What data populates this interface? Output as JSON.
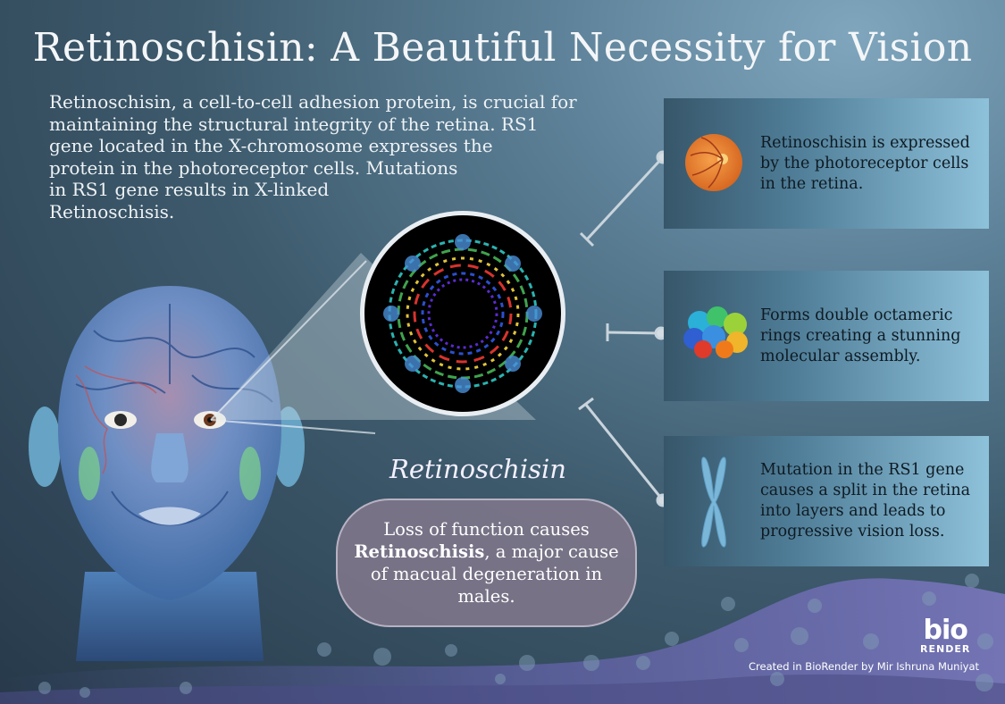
{
  "title": "Retinoschisin: A Beautiful Necessity for Vision",
  "intro_lines": [
    "Retinoschisin, a cell-to-cell adhesion protein, is crucial for",
    "maintaining the structural integrity of the retina. RS1",
    "gene located in the X-chromosome expresses the",
    "protein in the photoreceptor cells. Mutations",
    "in RS1 gene results in X-linked",
    "Retinoschisis."
  ],
  "cards": [
    {
      "icon": "retina-icon",
      "lines": [
        "Retinoschisin is expressed",
        "by the photoreceptor cells",
        "in the retina."
      ]
    },
    {
      "icon": "octamer-ring-icon",
      "lines": [
        "Forms double octameric",
        "rings creating a stunning",
        "molecular assembly."
      ]
    },
    {
      "icon": "chromosome-icon",
      "lines": [
        "Mutation in the RS1 gene",
        "causes a split in the retina",
        "into  layers and leads to",
        "progressive vision loss."
      ]
    }
  ],
  "protein_label": "Retinoschisin",
  "pill": {
    "line1": "Loss of function causes",
    "bold": "Retinoschisis",
    "line2_rest": ", a major cause",
    "line3": "of macual degeneration in",
    "line4": "males."
  },
  "logo": {
    "mark": "bio",
    "sub": "RENDER"
  },
  "credit": "Created in BioRender  by Mir Ishruna Muniyat",
  "colors": {
    "card_dark": "#37566a",
    "card_light": "#8ec1da",
    "pill": "#827890",
    "wave": "#6a6aa8"
  }
}
